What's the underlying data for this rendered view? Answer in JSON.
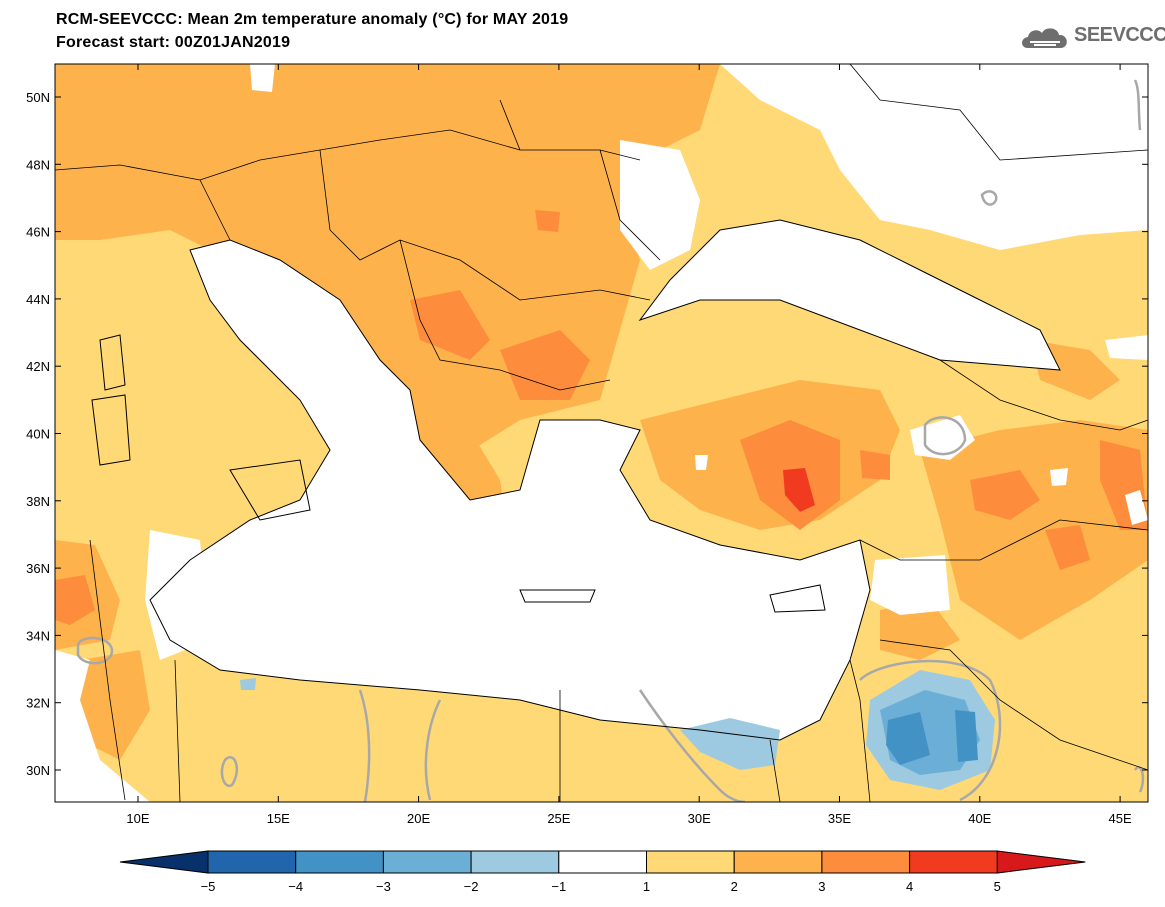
{
  "header": {
    "title": "RCM-SEEVCCC: Mean 2m temperature anomaly (°C) for MAY 2019",
    "subtitle": "Forecast start: 00Z01JAN2019",
    "logo_text": "SEEVCCC"
  },
  "map": {
    "latitude_labels": [
      "50N",
      "48N",
      "46N",
      "44N",
      "42N",
      "40N",
      "38N",
      "36N",
      "34N",
      "32N",
      "30N"
    ],
    "longitude_labels": [
      "10E",
      "15E",
      "20E",
      "25E",
      "30E",
      "35E",
      "40E",
      "45E"
    ],
    "colorbar": {
      "levels": [
        "−5",
        "−4",
        "−3",
        "−2",
        "−1",
        "1",
        "2",
        "3",
        "4",
        "5"
      ],
      "colors": [
        "#08306b",
        "#2166ac",
        "#4292c6",
        "#6baed6",
        "#9ecae1",
        "#ffffff",
        "#fed976",
        "#feb24c",
        "#fd8d3c",
        "#f03b20",
        "#d7191c"
      ]
    },
    "legend": {
      "anomaly_1_2": "#fed976",
      "anomaly_2_3": "#feb24c",
      "anomaly_3_4": "#fd8d3c",
      "anomaly_4_5": "#f03b20",
      "anomaly_neg1_neg2": "#9ecae1",
      "anomaly_neg2_neg3": "#6baed6",
      "anomaly_neg3_neg4": "#4292c6",
      "contour_zero": "#a8a8a8",
      "coastline": "#000000"
    }
  }
}
